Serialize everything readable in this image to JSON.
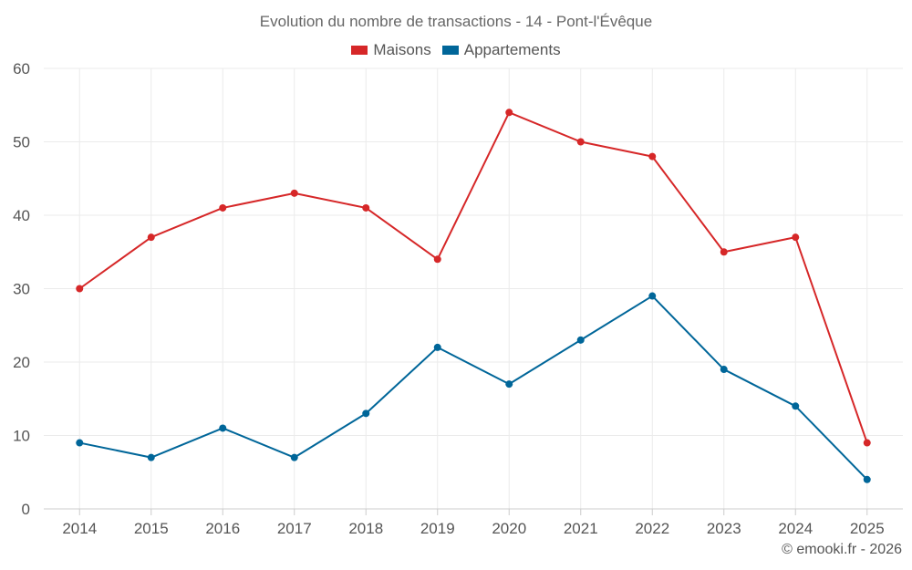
{
  "chart_data": {
    "type": "line",
    "title": "Evolution du nombre de transactions - 14 - Pont-l'Évêque",
    "categories": [
      "2014",
      "2015",
      "2016",
      "2017",
      "2018",
      "2019",
      "2020",
      "2021",
      "2022",
      "2023",
      "2024",
      "2025"
    ],
    "series": [
      {
        "name": "Maisons",
        "color": "#d62728",
        "values": [
          30,
          37,
          41,
          43,
          41,
          34,
          54,
          50,
          48,
          35,
          37,
          9
        ]
      },
      {
        "name": "Appartements",
        "color": "#006699",
        "values": [
          9,
          7,
          11,
          7,
          13,
          22,
          17,
          23,
          29,
          19,
          14,
          4
        ]
      }
    ],
    "ylim": [
      0,
      60
    ],
    "yticks": [
      0,
      10,
      20,
      30,
      40,
      50,
      60
    ],
    "xlabel": "",
    "ylabel": "",
    "grid": true,
    "legend_position": "top-center"
  },
  "credit": "© emooki.fr - 2026"
}
